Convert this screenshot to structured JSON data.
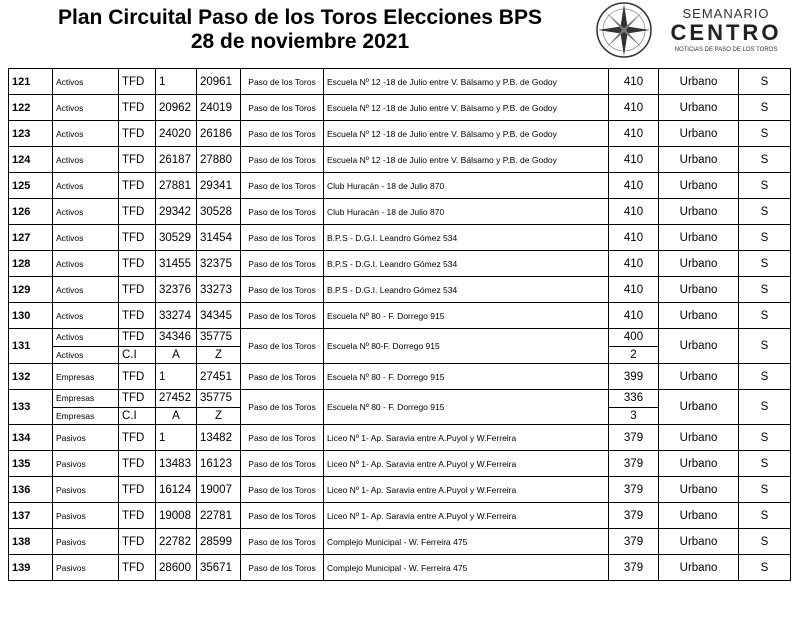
{
  "header": {
    "title_line1": "Plan Circuital Paso de los Toros Elecciones BPS",
    "title_line2": "28 de noviembre 2021",
    "logo_top": "SEMANARIO",
    "logo_main": "CENTRO",
    "logo_sub": "NOTICIAS DE PASO DE LOS TOROS"
  },
  "table": {
    "rows": [
      {
        "circuit": "121",
        "lines": [
          {
            "type": "Activos",
            "series": "TFD",
            "from": "1",
            "to": "20961",
            "voters": "410"
          }
        ],
        "locality": "Paso de los Toros",
        "place": "Escuela Nº 12 -18 de Julio entre V. Bálsamo y P.B. de Godoy",
        "zone": "Urbano",
        "flag": "S"
      },
      {
        "circuit": "122",
        "lines": [
          {
            "type": "Activos",
            "series": "TFD",
            "from": "20962",
            "to": "24019",
            "voters": "410"
          }
        ],
        "locality": "Paso de los Toros",
        "place": "Escuela Nº 12 -18 de Julio entre V. Bálsamo y P.B. de Godoy",
        "zone": "Urbano",
        "flag": "S"
      },
      {
        "circuit": "123",
        "lines": [
          {
            "type": "Activos",
            "series": "TFD",
            "from": "24020",
            "to": "26186",
            "voters": "410"
          }
        ],
        "locality": "Paso de los Toros",
        "place": "Escuela Nº 12 -18 de Julio entre V. Bálsamo y P.B. de Godoy",
        "zone": "Urbano",
        "flag": "S"
      },
      {
        "circuit": "124",
        "lines": [
          {
            "type": "Activos",
            "series": "TFD",
            "from": "26187",
            "to": "27880",
            "voters": "410"
          }
        ],
        "locality": "Paso de los Toros",
        "place": "Escuela Nº 12 -18 de Julio entre V. Bálsamo y P.B. de Godoy",
        "zone": "Urbano",
        "flag": "S"
      },
      {
        "circuit": "125",
        "lines": [
          {
            "type": "Activos",
            "series": "TFD",
            "from": "27881",
            "to": "29341",
            "voters": "410"
          }
        ],
        "locality": "Paso de los Toros",
        "place": "Club Huracán - 18 de Julio 870",
        "zone": "Urbano",
        "flag": "S"
      },
      {
        "circuit": "126",
        "lines": [
          {
            "type": "Activos",
            "series": "TFD",
            "from": "29342",
            "to": "30528",
            "voters": "410"
          }
        ],
        "locality": "Paso de los Toros",
        "place": "Club Huracán - 18 de Julio 870",
        "zone": "Urbano",
        "flag": "S"
      },
      {
        "circuit": "127",
        "lines": [
          {
            "type": "Activos",
            "series": "TFD",
            "from": "30529",
            "to": "31454",
            "voters": "410"
          }
        ],
        "locality": "Paso de los Toros",
        "place": "B.P.S - D.G.I. Leandro Gómez 534",
        "zone": "Urbano",
        "flag": "S"
      },
      {
        "circuit": "128",
        "lines": [
          {
            "type": "Activos",
            "series": "TFD",
            "from": "31455",
            "to": "32375",
            "voters": "410"
          }
        ],
        "locality": "Paso de los Toros",
        "place": "B.P.S - D.G.I. Leandro Gómez 534",
        "zone": "Urbano",
        "flag": "S"
      },
      {
        "circuit": "129",
        "lines": [
          {
            "type": "Activos",
            "series": "TFD",
            "from": "32376",
            "to": "33273",
            "voters": "410"
          }
        ],
        "locality": "Paso de los Toros",
        "place": "B.P.S - D.G.I.  Leandro Gómez 534",
        "zone": "Urbano",
        "flag": "S"
      },
      {
        "circuit": "130",
        "lines": [
          {
            "type": "Activos",
            "series": "TFD",
            "from": "33274",
            "to": "34345",
            "voters": "410"
          }
        ],
        "locality": "Paso de los Toros",
        "place": "Escuela Nº 80 - F. Dorrego 915",
        "zone": "Urbano",
        "flag": "S"
      },
      {
        "circuit": "131",
        "lines": [
          {
            "type": "Activos",
            "series": "TFD",
            "from": "34346",
            "to": "35775",
            "voters": "400"
          },
          {
            "type": "Activos",
            "series": "C.I",
            "from": "A",
            "to": "Z",
            "voters": "2"
          }
        ],
        "locality": "Paso de los Toros",
        "place": "Escuela Nº 80-F. Dorrego 915",
        "zone": "Urbano",
        "flag": "S"
      },
      {
        "circuit": "132",
        "lines": [
          {
            "type": "Empresas",
            "series": "TFD",
            "from": "1",
            "to": "27451",
            "voters": "399"
          }
        ],
        "locality": "Paso de los Toros",
        "place": "Escuela Nº 80 - F. Dorrego 915",
        "zone": "Urbano",
        "flag": "S"
      },
      {
        "circuit": "133",
        "lines": [
          {
            "type": "Empresas",
            "series": "TFD",
            "from": "27452",
            "to": "35775",
            "voters": "336"
          },
          {
            "type": "Empresas",
            "series": "C.I",
            "from": "A",
            "to": "Z",
            "voters": "3"
          }
        ],
        "locality": "Paso de los Toros",
        "place": "Escuela Nº 80 - F. Dorrego 915",
        "zone": "Urbano",
        "flag": "S"
      },
      {
        "circuit": "134",
        "lines": [
          {
            "type": "Pasivos",
            "series": "TFD",
            "from": "1",
            "to": "13482",
            "voters": "379"
          }
        ],
        "locality": "Paso de los Toros",
        "place": "Liceo Nº 1- Ap. Saravia entre A.Puyol y W.Ferreira",
        "zone": "Urbano",
        "flag": "S"
      },
      {
        "circuit": "135",
        "lines": [
          {
            "type": "Pasivos",
            "series": "TFD",
            "from": "13483",
            "to": "16123",
            "voters": "379"
          }
        ],
        "locality": "Paso de los Toros",
        "place": "Liceo Nº 1- Ap. Saravia entre A.Puyol y W.Ferreira",
        "zone": "Urbano",
        "flag": "S"
      },
      {
        "circuit": "136",
        "lines": [
          {
            "type": "Pasivos",
            "series": "TFD",
            "from": "16124",
            "to": "19007",
            "voters": "379"
          }
        ],
        "locality": "Paso de los Toros",
        "place": "Liceo Nº 1- Ap. Saravia entre A.Puyol y W.Ferreira",
        "zone": "Urbano",
        "flag": "S"
      },
      {
        "circuit": "137",
        "lines": [
          {
            "type": "Pasivos",
            "series": "TFD",
            "from": "19008",
            "to": "22781",
            "voters": "379"
          }
        ],
        "locality": "Paso de los Toros",
        "place": "Liceo Nº 1- Ap. Saravia entre A.Puyol y W.Ferreira",
        "zone": "Urbano",
        "flag": "S"
      },
      {
        "circuit": "138",
        "lines": [
          {
            "type": "Pasivos",
            "series": "TFD",
            "from": "22782",
            "to": "28599",
            "voters": "379"
          }
        ],
        "locality": "Paso de los Toros",
        "place": "Complejo Municipal - W. Ferreira 475",
        "zone": "Urbano",
        "flag": "S"
      },
      {
        "circuit": "139",
        "lines": [
          {
            "type": "Pasivos",
            "series": "TFD",
            "from": "28600",
            "to": "35671",
            "voters": "379"
          }
        ],
        "locality": "Paso de los Toros",
        "place": "Complejo Municipal - W. Ferreira 475",
        "zone": "Urbano",
        "flag": "S"
      }
    ]
  }
}
